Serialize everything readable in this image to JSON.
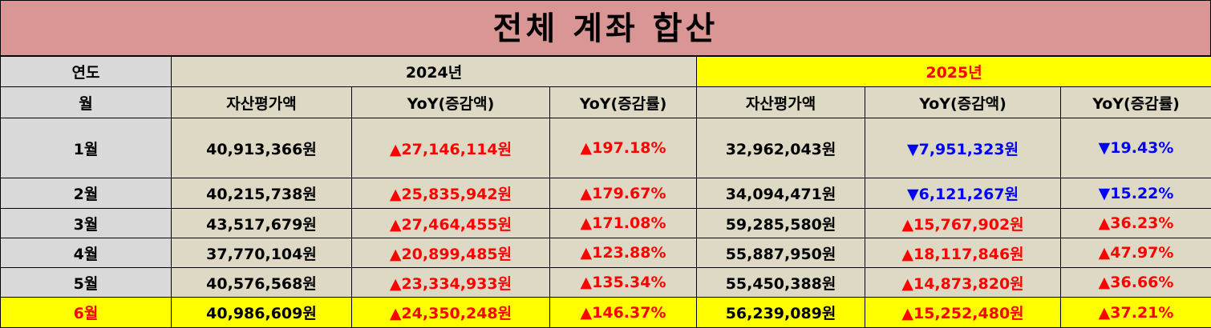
{
  "title": "전체 계좌 합산",
  "table": {
    "year_header": [
      "연도",
      "2024년",
      "2025년"
    ],
    "header": [
      "월",
      "자산평가액",
      "YoY(증감액)",
      "YoY(증감률)",
      "자산평가액",
      "YoY(증감액)",
      "YoY(증감률)"
    ],
    "rows": [
      [
        "1월",
        "40,913,366원",
        "▲27,146,114원",
        "▲197.18%",
        "32,962,043원",
        "▼7,951,323원",
        "▼19.43%"
      ],
      [
        "2월",
        "40,215,738원",
        "▲25,835,942원",
        "▲179.67%",
        "34,094,471원",
        "▼6,121,267원",
        "▼15.22%"
      ],
      [
        "3월",
        "43,517,679원",
        "▲27,464,455원",
        "▲171.08%",
        "59,285,580원",
        "▲15,767,902원",
        "▲36.23%"
      ],
      [
        "4월",
        "37,770,104원",
        "▲20,899,485원",
        "▲123.88%",
        "55,887,950원",
        "▲18,117,846원",
        "▲47.97%"
      ],
      [
        "5월",
        "40,576,568원",
        "▲23,334,933원",
        "▲135.34%",
        "55,450,388원",
        "▲14,873,820원",
        "▲36.66%"
      ],
      [
        "6월",
        "40,986,609원",
        "▲24,350,248원",
        "▲146.37%",
        "56,239,089원",
        "▲15,252,480원",
        "▲37.21%"
      ]
    ]
  }
}
